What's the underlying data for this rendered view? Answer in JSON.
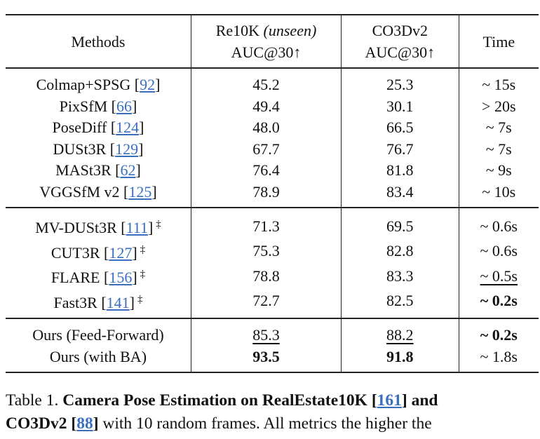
{
  "header": {
    "methods": "Methods",
    "re10k": "Re10K",
    "unseen": "(unseen)",
    "co3d": "CO3Dv2",
    "metric": "AUC@30",
    "arrow": "↑",
    "time": "Time"
  },
  "groups": [
    [
      {
        "name": "Colmap+SPSG",
        "ref": "92",
        "dagger": false,
        "re10k": "45.2",
        "co3d": "25.3",
        "time": "~ 15s"
      },
      {
        "name": "PixSfM",
        "ref": "66",
        "dagger": false,
        "re10k": "49.4",
        "co3d": "30.1",
        "time": "> 20s"
      },
      {
        "name": "PoseDiff",
        "ref": "124",
        "dagger": false,
        "re10k": "48.0",
        "co3d": "66.5",
        "time": "~ 7s"
      },
      {
        "name": "DUSt3R",
        "ref": "129",
        "dagger": false,
        "re10k": "67.7",
        "co3d": "76.7",
        "time": "~ 7s"
      },
      {
        "name": "MASt3R",
        "ref": "62",
        "dagger": false,
        "re10k": "76.4",
        "co3d": "81.8",
        "time": "~ 9s"
      },
      {
        "name": "VGGSfM v2",
        "ref": "125",
        "dagger": false,
        "re10k": "78.9",
        "co3d": "83.4",
        "time": "~ 10s"
      }
    ],
    [
      {
        "name": "MV-DUSt3R",
        "ref": "111",
        "dagger": true,
        "re10k": "71.3",
        "co3d": "69.5",
        "time": "~ 0.6s"
      },
      {
        "name": "CUT3R",
        "ref": "127",
        "dagger": true,
        "re10k": "75.3",
        "co3d": "82.8",
        "time": "~ 0.6s"
      },
      {
        "name": "FLARE",
        "ref": "156",
        "dagger": true,
        "re10k": "78.8",
        "co3d": "83.3",
        "time": "~ 0.5s",
        "time_style": "u"
      },
      {
        "name": "Fast3R",
        "ref": "141",
        "dagger": true,
        "re10k": "72.7",
        "co3d": "82.5",
        "time": "~ 0.2s",
        "time_style": "b"
      }
    ],
    [
      {
        "name": "Ours (Feed-Forward)",
        "re10k": "85.3",
        "co3d": "88.2",
        "time": "~ 0.2s",
        "re10k_style": "u",
        "co3d_style": "u",
        "time_style": "b"
      },
      {
        "name": "Ours (with BA)",
        "re10k": "93.5",
        "co3d": "91.8",
        "time": "~ 1.8s",
        "re10k_style": "b",
        "co3d_style": "b"
      }
    ]
  ],
  "caption": {
    "label": "Table 1.",
    "bold1": "Camera Pose Estimation on RealEstate10K",
    "ref1": "161",
    "bold2": "and",
    "line2_bold": "CO3Dv2",
    "ref2": "88",
    "rest": "with 10 random frames.  All metrics the higher the"
  }
}
